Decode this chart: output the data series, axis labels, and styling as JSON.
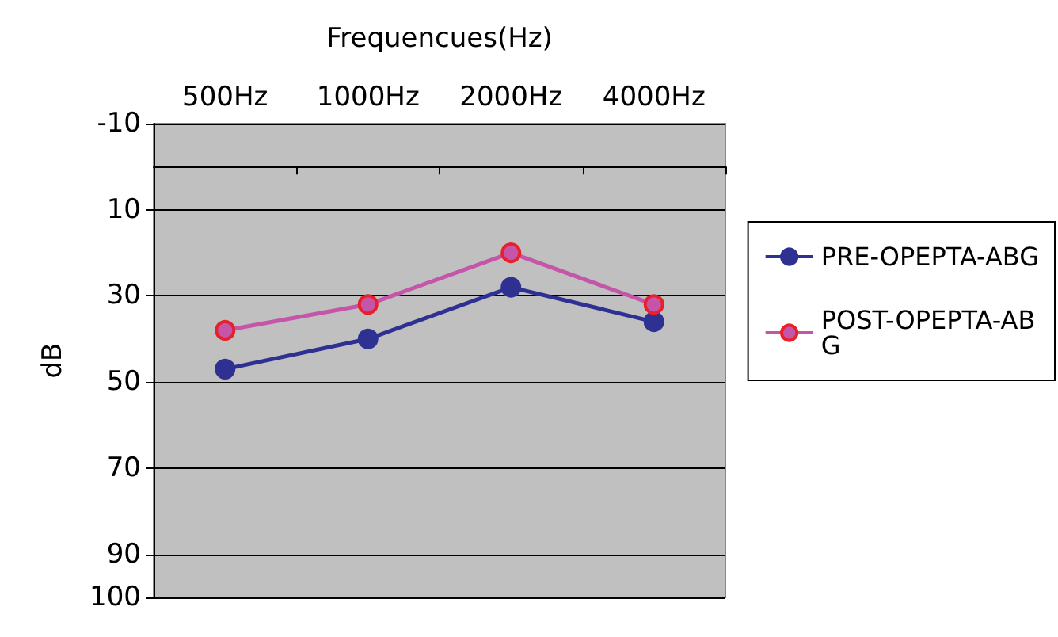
{
  "chart_data": {
    "type": "line",
    "xlabel": "Frequencues(Hz)",
    "ylabel": "dB",
    "categories": [
      "500Hz",
      "1000Hz",
      "2000Hz",
      "4000Hz"
    ],
    "series": [
      {
        "name": "PRE-OPEPTA-ABG",
        "color": "#2e3192",
        "values": [
          47,
          40,
          28,
          36
        ]
      },
      {
        "name": "POST-OPEPTA-ABG",
        "color": "#c455a8",
        "values": [
          38,
          32,
          20,
          32
        ]
      }
    ],
    "ylim": [
      100,
      -10
    ],
    "yticks": [
      -10,
      10,
      30,
      50,
      70,
      90,
      100
    ],
    "grid": "y",
    "legend": "right",
    "marker": "circle"
  }
}
